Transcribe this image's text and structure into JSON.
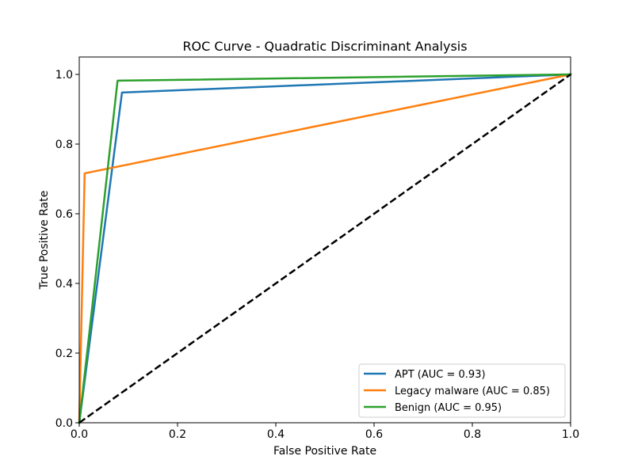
{
  "chart_data": {
    "type": "line",
    "title": "ROC Curve - Quadratic Discriminant Analysis",
    "xlabel": "False Positive Rate",
    "ylabel": "True Positive Rate",
    "xlim": [
      0.0,
      1.0
    ],
    "ylim": [
      0.0,
      1.05
    ],
    "xticks": [
      0.0,
      0.2,
      0.4,
      0.6,
      0.8,
      1.0
    ],
    "xtick_labels": [
      "0.0",
      "0.2",
      "0.4",
      "0.6",
      "0.8",
      "1.0"
    ],
    "yticks": [
      0.0,
      0.2,
      0.4,
      0.6,
      0.8,
      1.0
    ],
    "ytick_labels": [
      "0.0",
      "0.2",
      "0.4",
      "0.6",
      "0.8",
      "1.0"
    ],
    "grid": false,
    "legend_position": "bottom-right",
    "series": [
      {
        "name": "APT (AUC = 0.93)",
        "color": "#1f77b4",
        "x": [
          0.0,
          0.087,
          1.0
        ],
        "y": [
          0.0,
          0.948,
          1.0
        ]
      },
      {
        "name": "Legacy malware (AUC = 0.85)",
        "color": "#ff7f0e",
        "x": [
          0.0,
          0.011,
          1.0
        ],
        "y": [
          0.0,
          0.716,
          1.0
        ]
      },
      {
        "name": "Benign (AUC = 0.95)",
        "color": "#2ca02c",
        "x": [
          0.0,
          0.078,
          1.0
        ],
        "y": [
          0.0,
          0.982,
          1.0
        ]
      }
    ],
    "reference_line": {
      "style": "dashed",
      "color": "#000000",
      "x": [
        0.0,
        1.0
      ],
      "y": [
        0.0,
        1.0
      ]
    }
  }
}
